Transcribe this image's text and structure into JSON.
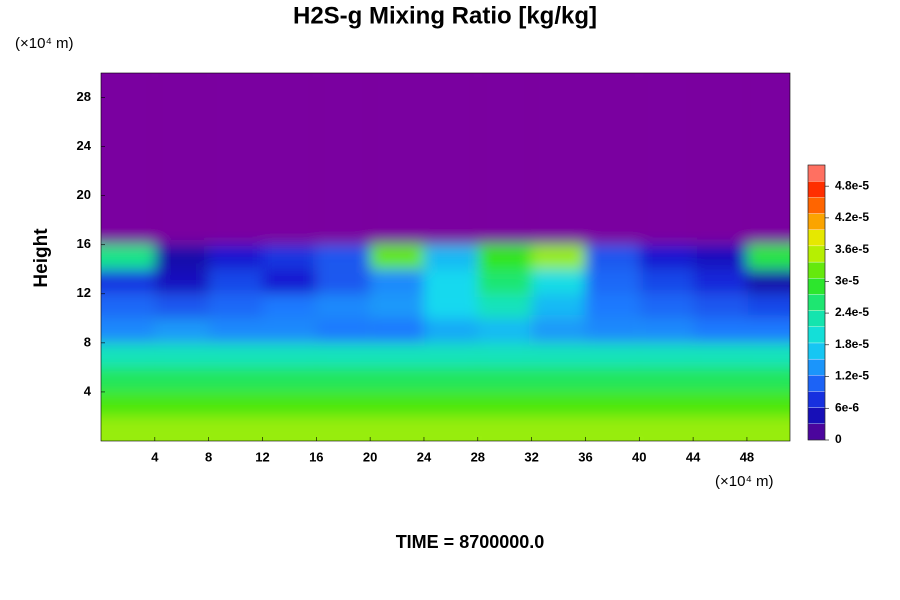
{
  "chart_data": {
    "type": "contour",
    "title": "H2S-g Mixing Ratio [kg/kg]",
    "y_label": "Height",
    "x_unit": "(×10⁴ m)",
    "y_unit": "(×10⁴ m)",
    "footer": "TIME = 8700000.0",
    "xlim": [
      0,
      51.2
    ],
    "ylim": [
      0,
      30
    ],
    "xticks": [
      4,
      8,
      12,
      16,
      20,
      24,
      28,
      32,
      36,
      40,
      44,
      48
    ],
    "yticks": [
      4,
      8,
      12,
      16,
      20,
      24,
      28
    ],
    "x_edges": [
      0,
      4,
      8,
      12,
      16,
      20,
      24,
      28,
      32,
      36,
      40,
      44,
      48,
      51.2
    ],
    "y_edges": [
      0,
      2,
      4,
      6,
      8,
      10,
      12,
      14,
      16,
      30
    ],
    "z": [
      [
        3.4e-05,
        3.4e-05,
        3.4e-05,
        3.4e-05,
        3.4e-05,
        3.4e-05,
        3.4e-05,
        3.4e-05,
        3.4e-05,
        3.4e-05,
        3.4e-05,
        3.4e-05,
        3.4e-05
      ],
      [
        3.1e-05,
        3.1e-05,
        3.1e-05,
        3.1e-05,
        3.1e-05,
        3.1e-05,
        3.1e-05,
        3.1e-05,
        3.1e-05,
        3.1e-05,
        3.1e-05,
        3.1e-05,
        3.1e-05
      ],
      [
        2.7e-05,
        2.7e-05,
        2.7e-05,
        2.7e-05,
        2.7e-05,
        2.7e-05,
        2.7e-05,
        2.7e-05,
        2.7e-05,
        2.7e-05,
        2.7e-05,
        2.7e-05,
        2.7e-05
      ],
      [
        2.2e-05,
        2.2e-05,
        2.2e-05,
        2.2e-05,
        2.2e-05,
        2.2e-05,
        2.2e-05,
        2.2e-05,
        2.2e-05,
        2.2e-05,
        2.2e-05,
        2.2e-05,
        2.2e-05
      ],
      [
        1.3e-05,
        1.4e-05,
        1.3e-05,
        1.3e-05,
        1.2e-05,
        1.2e-05,
        1.5e-05,
        1.6e-05,
        1.4e-05,
        1.3e-05,
        1.3e-05,
        1.2e-05,
        1.2e-05
      ],
      [
        1.1e-05,
        1e-05,
        1.1e-05,
        1.2e-05,
        1.3e-05,
        1.4e-05,
        1.8e-05,
        2.2e-05,
        1.6e-05,
        1.2e-05,
        1.1e-05,
        1e-05,
        9e-06
      ],
      [
        8e-06,
        5e-06,
        9e-06,
        6e-06,
        1e-05,
        1.3e-05,
        1.8e-05,
        2.6e-05,
        1.9e-05,
        1.1e-05,
        9e-06,
        7e-06,
        4e-06
      ],
      [
        2.5e-05,
        4e-06,
        6e-06,
        8e-06,
        1e-05,
        3.2e-05,
        1.6e-05,
        3e-05,
        3.4e-05,
        1e-05,
        6e-06,
        5e-06,
        2.8e-05
      ],
      [
        0,
        0,
        0,
        0,
        0,
        0,
        0,
        0,
        0,
        0,
        0,
        0,
        0
      ]
    ],
    "zlim": [
      0,
      5.2e-05
    ],
    "zticks": [
      0,
      {
        "value": 6e-06,
        "label": "6e-6"
      },
      {
        "value": 1.2e-05,
        "label": "1.2e-5"
      },
      {
        "value": 1.8e-05,
        "label": "1.8e-5"
      },
      {
        "value": 2.4e-05,
        "label": "2.4e-5"
      },
      {
        "value": 3e-05,
        "label": "3e-5"
      },
      {
        "value": 3.6e-05,
        "label": "3.6e-5"
      },
      {
        "value": 4.2e-05,
        "label": "4.2e-5"
      },
      {
        "value": 4.8e-05,
        "label": "4.8e-5"
      }
    ]
  }
}
